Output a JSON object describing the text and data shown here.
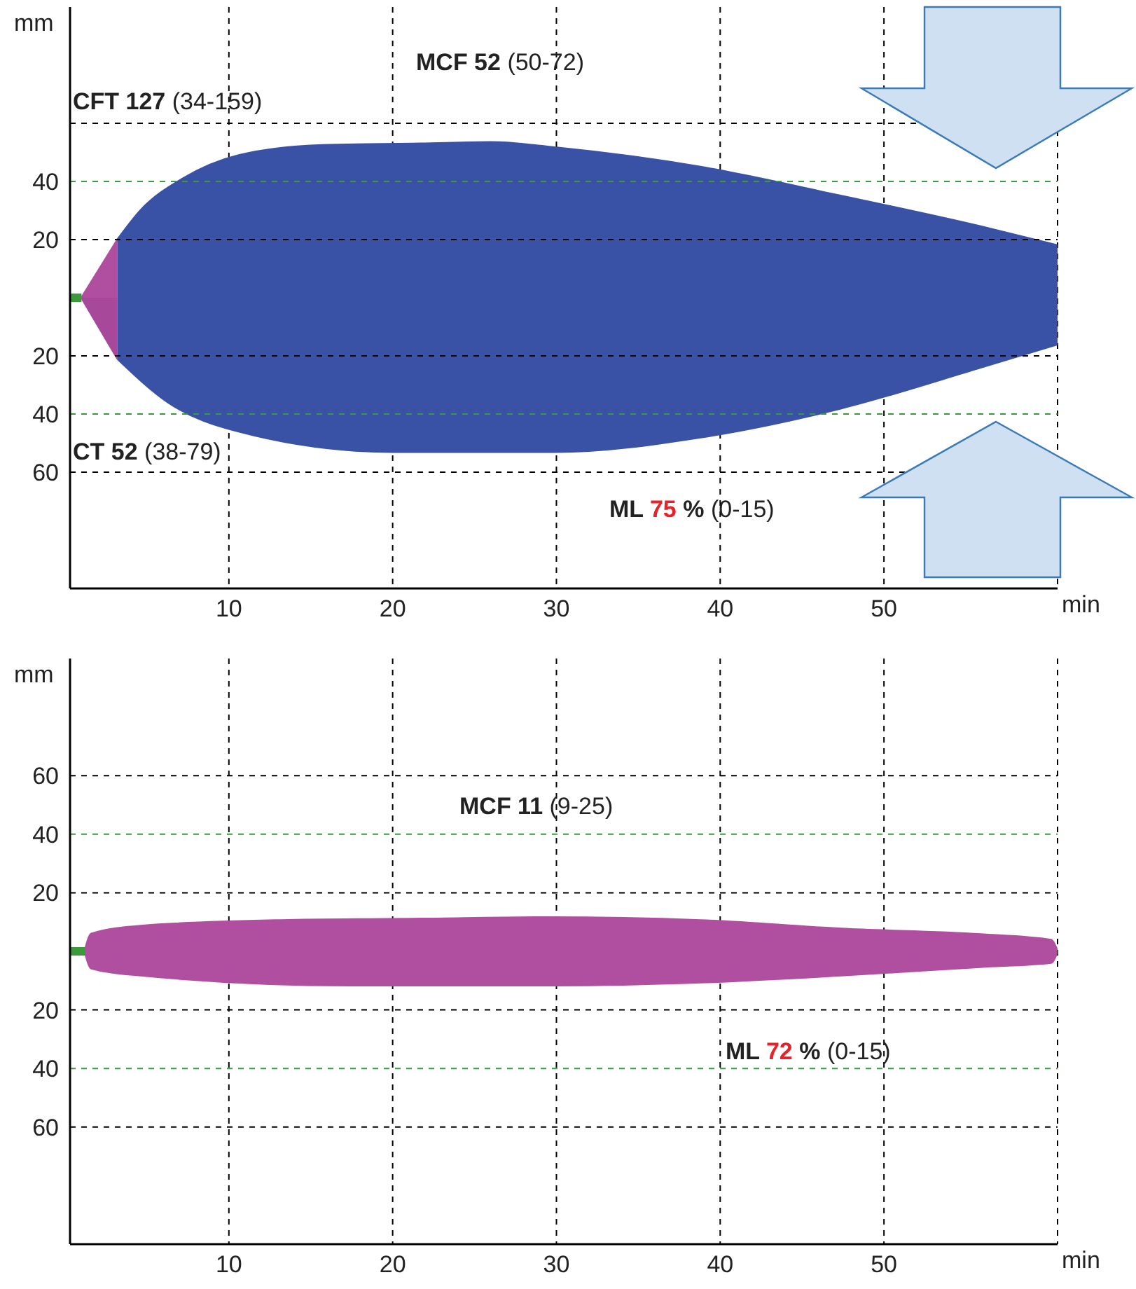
{
  "chart_data": [
    {
      "type": "area",
      "xlabel": "min",
      "ylabel": "mm",
      "xlim": [
        0.3,
        60.6
      ],
      "xticks": [
        10,
        20,
        30,
        40,
        50
      ],
      "ylim": [
        -100,
        100
      ],
      "yticks": [
        {
          "value": 20,
          "label": "20"
        },
        {
          "value": 40,
          "label": "40"
        },
        {
          "value": 60,
          "label": null
        },
        {
          "value": -20,
          "label": "20"
        },
        {
          "value": -40,
          "label": "40"
        },
        {
          "value": -60,
          "label": "60"
        }
      ],
      "grid": "x",
      "legend": false,
      "ref_lines": [
        {
          "axis": "y",
          "value": 20,
          "color": "#000000",
          "line_style": "dashed"
        },
        {
          "axis": "y",
          "value": 40,
          "color": "#3c9a3c",
          "line_style": "dashed"
        },
        {
          "axis": "y",
          "value": 60,
          "color": "#000000",
          "line_style": "dashed"
        },
        {
          "axis": "y",
          "value": -20,
          "color": "#000000",
          "line_style": "dashed"
        },
        {
          "axis": "y",
          "value": -40,
          "color": "#3c9a3c",
          "line_style": "dashed"
        },
        {
          "axis": "y",
          "value": -60,
          "color": "#000000",
          "line_style": "dashed"
        }
      ],
      "series": [
        {
          "type": "line",
          "color": "#3c9a3c",
          "x": [
            0.3,
            1.0
          ],
          "values": [
            0,
            0
          ]
        },
        {
          "color": "#b04fa0",
          "x": [
            1.0,
            3.2
          ],
          "values": [
            0,
            20
          ]
        },
        {
          "color": "#a8489a",
          "x": [
            1.0,
            3.2
          ],
          "values": [
            0,
            -21
          ]
        },
        {
          "color": "#3a52a6",
          "x": [
            3.2,
            4.6,
            7.2,
            10.6,
            15.7,
            21.7,
            26,
            30.2,
            38.8,
            47.4,
            55.9,
            60.6
          ],
          "values": [
            20,
            30,
            41,
            49,
            52.5,
            53,
            53.5,
            51.5,
            45,
            35,
            24.5,
            18
          ]
        },
        {
          "color": "#3a52a6",
          "x": [
            3.2,
            6.3,
            10.6,
            20,
            30,
            38.8,
            47.4,
            55.9,
            60.6
          ],
          "values": [
            -21,
            -36,
            -46,
            -53,
            -53,
            -48,
            -38,
            -24,
            -16
          ]
        }
      ],
      "annotations": [
        "CFT 127 (34-159)",
        "MCF 52 (50-72)",
        "CT 52 (38-79)",
        "ML 75 % (0-15)"
      ]
    },
    {
      "type": "area",
      "xlabel": "min",
      "ylabel": "mm",
      "xlim": [
        0.3,
        60.6
      ],
      "xticks": [
        10,
        20,
        30,
        40,
        50
      ],
      "ylim": [
        -100,
        100
      ],
      "yticks": [
        {
          "value": 20,
          "label": "20"
        },
        {
          "value": 40,
          "label": "40"
        },
        {
          "value": 60,
          "label": "60"
        },
        {
          "value": -20,
          "label": "20"
        },
        {
          "value": -40,
          "label": "40"
        },
        {
          "value": -60,
          "label": "60"
        }
      ],
      "grid": "x",
      "legend": false,
      "ref_lines": [
        {
          "axis": "y",
          "value": 20,
          "color": "#000000",
          "line_style": "dashed"
        },
        {
          "axis": "y",
          "value": 40,
          "color": "#3c9a3c",
          "line_style": "dashed"
        },
        {
          "axis": "y",
          "value": 60,
          "color": "#000000",
          "line_style": "dashed"
        },
        {
          "axis": "y",
          "value": -20,
          "color": "#000000",
          "line_style": "dashed"
        },
        {
          "axis": "y",
          "value": -40,
          "color": "#3c9a3c",
          "line_style": "dashed"
        },
        {
          "axis": "y",
          "value": -60,
          "color": "#000000",
          "line_style": "dashed"
        }
      ],
      "series": [
        {
          "type": "line",
          "color": "#3c9a3c",
          "x": [
            0.3,
            1.2
          ],
          "values": [
            0,
            0
          ]
        },
        {
          "color": "#b04fa0",
          "x": [
            1.2,
            1.6,
            4.6,
            13.2,
            21.7,
            29.4,
            38.8,
            47.4,
            55.9,
            60.2,
            60.6
          ],
          "values": [
            0,
            6,
            8.7,
            10.6,
            11.1,
            11.6,
            10.6,
            7.7,
            5.8,
            3.9,
            0
          ]
        },
        {
          "color": "#b04fa0",
          "x": [
            1.2,
            1.6,
            4.6,
            17.4,
            30,
            38.8,
            47.4,
            55.9,
            60.2,
            60.6
          ],
          "values": [
            0,
            -5.8,
            -8.2,
            -11.6,
            -11.6,
            -10.6,
            -8.2,
            -5.3,
            -3.9,
            0
          ]
        }
      ],
      "annotations": [
        "MCF 11 (9-25)",
        "ML 72 % (0-15)"
      ]
    }
  ]
}
